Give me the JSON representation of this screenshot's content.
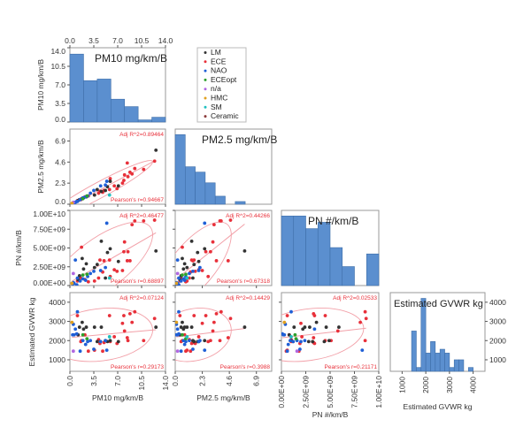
{
  "chart_data": {
    "type": "scatter-matrix",
    "variables": [
      {
        "key": "pm10",
        "label": "PM10 mg/km/B",
        "range": [
          0,
          14
        ],
        "ticks": [
          0,
          3.5,
          7,
          10.5,
          14
        ],
        "tick_labels": [
          "0.0",
          "3.5",
          "7.0",
          "10.5",
          "14.0"
        ]
      },
      {
        "key": "pm25",
        "label": "PM2.5 mg/km/B",
        "range": [
          0,
          8.2
        ],
        "ticks": [
          0,
          2.3,
          4.6,
          6.9
        ],
        "tick_labels": [
          "0.0",
          "2.3",
          "4.6",
          "6.9"
        ]
      },
      {
        "key": "pn",
        "label": "PN #/km/B",
        "range": [
          0,
          10000000000.0
        ],
        "ticks": [
          0,
          2500000000.0,
          5000000000.0,
          7500000000.0,
          10000000000.0
        ],
        "tick_labels": [
          "0.00E+00",
          "2.50E+09",
          "5.00E+09",
          "7.50E+09",
          "1.00E+10"
        ]
      },
      {
        "key": "gvwr",
        "label": "Estimated GVWR kg",
        "range": [
          400,
          4500
        ],
        "ticks": [
          1000,
          2000,
          3000,
          4000
        ],
        "tick_labels": [
          "1000",
          "2000",
          "3000",
          "4000"
        ]
      }
    ],
    "legend": {
      "placement": "top",
      "entries": [
        {
          "name": "LM",
          "color": "#333333"
        },
        {
          "name": "ECE",
          "color": "#e8303a"
        },
        {
          "name": "NAO",
          "color": "#1f5fd6"
        },
        {
          "name": "ECEopt",
          "color": "#2ca02c"
        },
        {
          "name": "n/a",
          "color": "#b067e0"
        },
        {
          "name": "HMC",
          "color": "#e0a020"
        },
        {
          "name": "SM",
          "color": "#20c0c0"
        },
        {
          "name": "Ceramic",
          "color": "#8b3a3a"
        }
      ]
    },
    "histograms": {
      "pm10": {
        "bin_edges": [
          0,
          2,
          4,
          6,
          8,
          10,
          12,
          14
        ],
        "counts": [
          12.8,
          7.8,
          8.1,
          4.3,
          2.9,
          0.4,
          0.9
        ],
        "ylim": [
          0,
          14
        ],
        "yticks": [
          0,
          3.5,
          7,
          10.5,
          14
        ],
        "ytick_labels": [
          "0.0",
          "3.5",
          "7.0",
          "10.5",
          "14.0"
        ]
      },
      "pm25": {
        "bin_edges": [
          0,
          0.85,
          1.7,
          2.55,
          3.4,
          4.25,
          5.1,
          5.95
        ],
        "counts": [
          26,
          14,
          12,
          8,
          3,
          0,
          1
        ]
      },
      "pn": {
        "bin_edges": [
          0,
          1250000000.0,
          2500000000.0,
          3750000000.0,
          5000000000.0,
          6250000000.0,
          7500000000.0,
          8750000000.0,
          10000000000.0
        ],
        "counts": [
          11,
          11,
          9,
          10,
          6,
          3,
          0,
          5
        ]
      },
      "gvwr": {
        "bin_edges": [
          1400,
          1600,
          1800,
          2000,
          2200,
          2400,
          2600,
          2800,
          3000,
          3200,
          3400,
          3600,
          3800,
          4000
        ],
        "counts": [
          2500,
          600,
          4200,
          1350,
          1950,
          1350,
          1550,
          1350,
          600,
          1000,
          1000,
          0,
          600
        ]
      }
    },
    "stats": [
      {
        "row": 1,
        "col": 0,
        "adj_r2": "Adj R^2=0.89464",
        "pearson": "Pearson's r=0.94667"
      },
      {
        "row": 2,
        "col": 0,
        "adj_r2": "Adj R^2=0.46477",
        "pearson": "Pearson's r=0.68897"
      },
      {
        "row": 2,
        "col": 1,
        "adj_r2": "Adj R^2=0.44266",
        "pearson": "Pearson's r=0.67318"
      },
      {
        "row": 3,
        "col": 0,
        "adj_r2": "Adj R^2=0.07124",
        "pearson": "Pearson's r=0.29173"
      },
      {
        "row": 3,
        "col": 1,
        "adj_r2": "Adj R^2=0.14429",
        "pearson": "Pearson's r=0.3988"
      },
      {
        "row": 3,
        "col": 2,
        "adj_r2": "Adj R^2=0.02533",
        "pearson": "Pearson's r=0.21171"
      }
    ],
    "points_columns": [
      "pm10",
      "pm25",
      "pn",
      "gvwr",
      "group"
    ],
    "points": [
      [
        12.4,
        4.7,
        8700000000.0,
        3150,
        "ECE"
      ],
      [
        10.8,
        3.8,
        8600000000.0,
        2000,
        "ECE"
      ],
      [
        9.5,
        3.9,
        8600000000.0,
        3500,
        "ECE"
      ],
      [
        9.1,
        3.3,
        8100000000.0,
        2950,
        "ECE"
      ],
      [
        8.8,
        3.5,
        3300000000.0,
        3400,
        "ECE"
      ],
      [
        8.4,
        4.5,
        3300000000.0,
        2150,
        "ECE"
      ],
      [
        8.5,
        3.0,
        4500000000.0,
        2000,
        "ECE"
      ],
      [
        8.0,
        3.2,
        5800000000.0,
        2500,
        "ECE"
      ],
      [
        7.9,
        2.6,
        4500000000.0,
        3300,
        "ECE"
      ],
      [
        7.7,
        2.3,
        2000000000.0,
        2900,
        "ECE"
      ],
      [
        6.9,
        1.7,
        1900000000.0,
        1850,
        "ECE"
      ],
      [
        6.5,
        2.0,
        2100000000.0,
        2200,
        "ECE"
      ],
      [
        5.8,
        1.6,
        3400000000.0,
        3300,
        "ECE"
      ],
      [
        5.0,
        1.5,
        3300000000.0,
        1900,
        "ECE"
      ],
      [
        4.8,
        1.3,
        1800000000.0,
        1450,
        "ECE"
      ],
      [
        4.4,
        1.4,
        3400000000.0,
        1850,
        "ECE"
      ],
      [
        4.2,
        1.2,
        1000000000.0,
        2050,
        "ECE"
      ],
      [
        3.6,
        1.0,
        600000000.0,
        1500,
        "ECE"
      ],
      [
        2.7,
        0.9,
        500000000.0,
        1450,
        "ECE"
      ],
      [
        1.7,
        0.6,
        5100000000.0,
        2000,
        "ECE"
      ],
      [
        1.6,
        0.5,
        1000000000.0,
        1950,
        "ECE"
      ],
      [
        1.1,
        0.4,
        600000000.0,
        3300,
        "ECE"
      ],
      [
        2.2,
        0.8,
        800000000.0,
        2300,
        "ECE"
      ],
      [
        5.9,
        2.8,
        1200000000.0,
        1950,
        "ECE"
      ],
      [
        12.6,
        5.9,
        4600000000.0,
        2700,
        "LM"
      ],
      [
        7.1,
        2.0,
        3200000000.0,
        1950,
        "LM"
      ],
      [
        5.9,
        2.5,
        4900000000.0,
        2000,
        "LM"
      ],
      [
        5.5,
        1.9,
        4400000000.0,
        1950,
        "LM"
      ],
      [
        5.2,
        1.5,
        1000000000.0,
        2000,
        "LM"
      ],
      [
        4.6,
        1.4,
        5900000000.0,
        2700,
        "LM"
      ],
      [
        3.6,
        1.0,
        2400000000.0,
        2700,
        "LM"
      ],
      [
        2.4,
        0.8,
        2900000000.0,
        2700,
        "LM"
      ],
      [
        1.8,
        0.6,
        3600000000.0,
        2950,
        "LM"
      ],
      [
        1.4,
        0.5,
        1300000000.0,
        2700,
        "LM"
      ],
      [
        1.2,
        0.4,
        800000000.0,
        2300,
        "LM"
      ],
      [
        2.0,
        0.7,
        2200000000.0,
        2600,
        "LM"
      ],
      [
        4.0,
        1.6,
        2800000000.0,
        1950,
        "LM"
      ],
      [
        5.4,
        2.5,
        8300000000.0,
        1500,
        "NAO"
      ],
      [
        5.2,
        2.1,
        2400000000.0,
        2000,
        "NAO"
      ],
      [
        4.5,
        2.0,
        2000000000.0,
        1950,
        "NAO"
      ],
      [
        3.5,
        1.5,
        1900000000.0,
        1550,
        "NAO"
      ],
      [
        3.0,
        1.2,
        1600000000.0,
        2000,
        "NAO"
      ],
      [
        2.6,
        0.9,
        1200000000.0,
        1950,
        "NAO"
      ],
      [
        1.9,
        0.7,
        900000000.0,
        2000,
        "NAO"
      ],
      [
        1.5,
        0.5,
        600000000.0,
        1450,
        "NAO"
      ],
      [
        1.0,
        0.3,
        100000000.0,
        2350,
        "NAO"
      ],
      [
        0.8,
        0.2,
        3400000000.0,
        2600,
        "NAO"
      ],
      [
        0.6,
        0.2,
        300000000.0,
        2300,
        "NAO"
      ],
      [
        0.5,
        0.1,
        400000000.0,
        2850,
        "NAO"
      ],
      [
        1.1,
        0.3,
        1000000000.0,
        3500,
        "NAO"
      ],
      [
        0.4,
        0.1,
        200000000.0,
        2300,
        "NAO"
      ],
      [
        2.3,
        0.8,
        700000000.0,
        1800,
        "NAO"
      ],
      [
        1.9,
        0.6,
        1400000000.0,
        2300,
        "ECEopt"
      ],
      [
        2.5,
        0.9,
        1500000000.0,
        2100,
        "ECEopt"
      ],
      [
        0.5,
        0.2,
        1600000000.0,
        1450,
        "n/a"
      ],
      [
        0.3,
        0.1,
        300000000.0,
        2950,
        "HMC"
      ],
      [
        5.8,
        1.0,
        1000000000.0,
        2200,
        "SM"
      ]
    ]
  }
}
